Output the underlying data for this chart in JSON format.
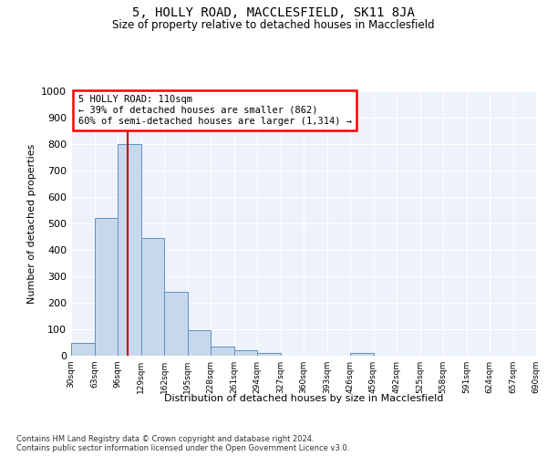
{
  "title1": "5, HOLLY ROAD, MACCLESFIELD, SK11 8JA",
  "title2": "Size of property relative to detached houses in Macclesfield",
  "xlabel": "Distribution of detached houses by size in Macclesfield",
  "ylabel": "Number of detached properties",
  "footnote1": "Contains HM Land Registry data © Crown copyright and database right 2024.",
  "footnote2": "Contains public sector information licensed under the Open Government Licence v3.0.",
  "annotation_line1": "5 HOLLY ROAD: 110sqm",
  "annotation_line2": "← 39% of detached houses are smaller (862)",
  "annotation_line3": "60% of semi-detached houses are larger (1,314) →",
  "property_size": 110,
  "bar_color": "#c8d8ec",
  "bar_edgecolor": "#6090c0",
  "vline_color": "#cc0000",
  "background_color": "#eef2fa",
  "bin_edges": [
    30,
    63,
    96,
    129,
    162,
    195,
    228,
    261,
    294,
    327,
    360,
    393,
    426,
    459,
    492,
    525,
    558,
    591,
    624,
    657,
    690
  ],
  "bin_labels": [
    "30sqm",
    "63sqm",
    "96sqm",
    "129sqm",
    "162sqm",
    "195sqm",
    "228sqm",
    "261sqm",
    "294sqm",
    "327sqm",
    "360sqm",
    "393sqm",
    "426sqm",
    "459sqm",
    "492sqm",
    "525sqm",
    "558sqm",
    "591sqm",
    "624sqm",
    "657sqm",
    "690sqm"
  ],
  "bar_heights": [
    50,
    520,
    800,
    445,
    240,
    95,
    35,
    20,
    10,
    0,
    0,
    0,
    10,
    0,
    0,
    0,
    0,
    0,
    0,
    0
  ],
  "ylim": [
    0,
    1000
  ],
  "yticks": [
    0,
    100,
    200,
    300,
    400,
    500,
    600,
    700,
    800,
    900,
    1000
  ]
}
